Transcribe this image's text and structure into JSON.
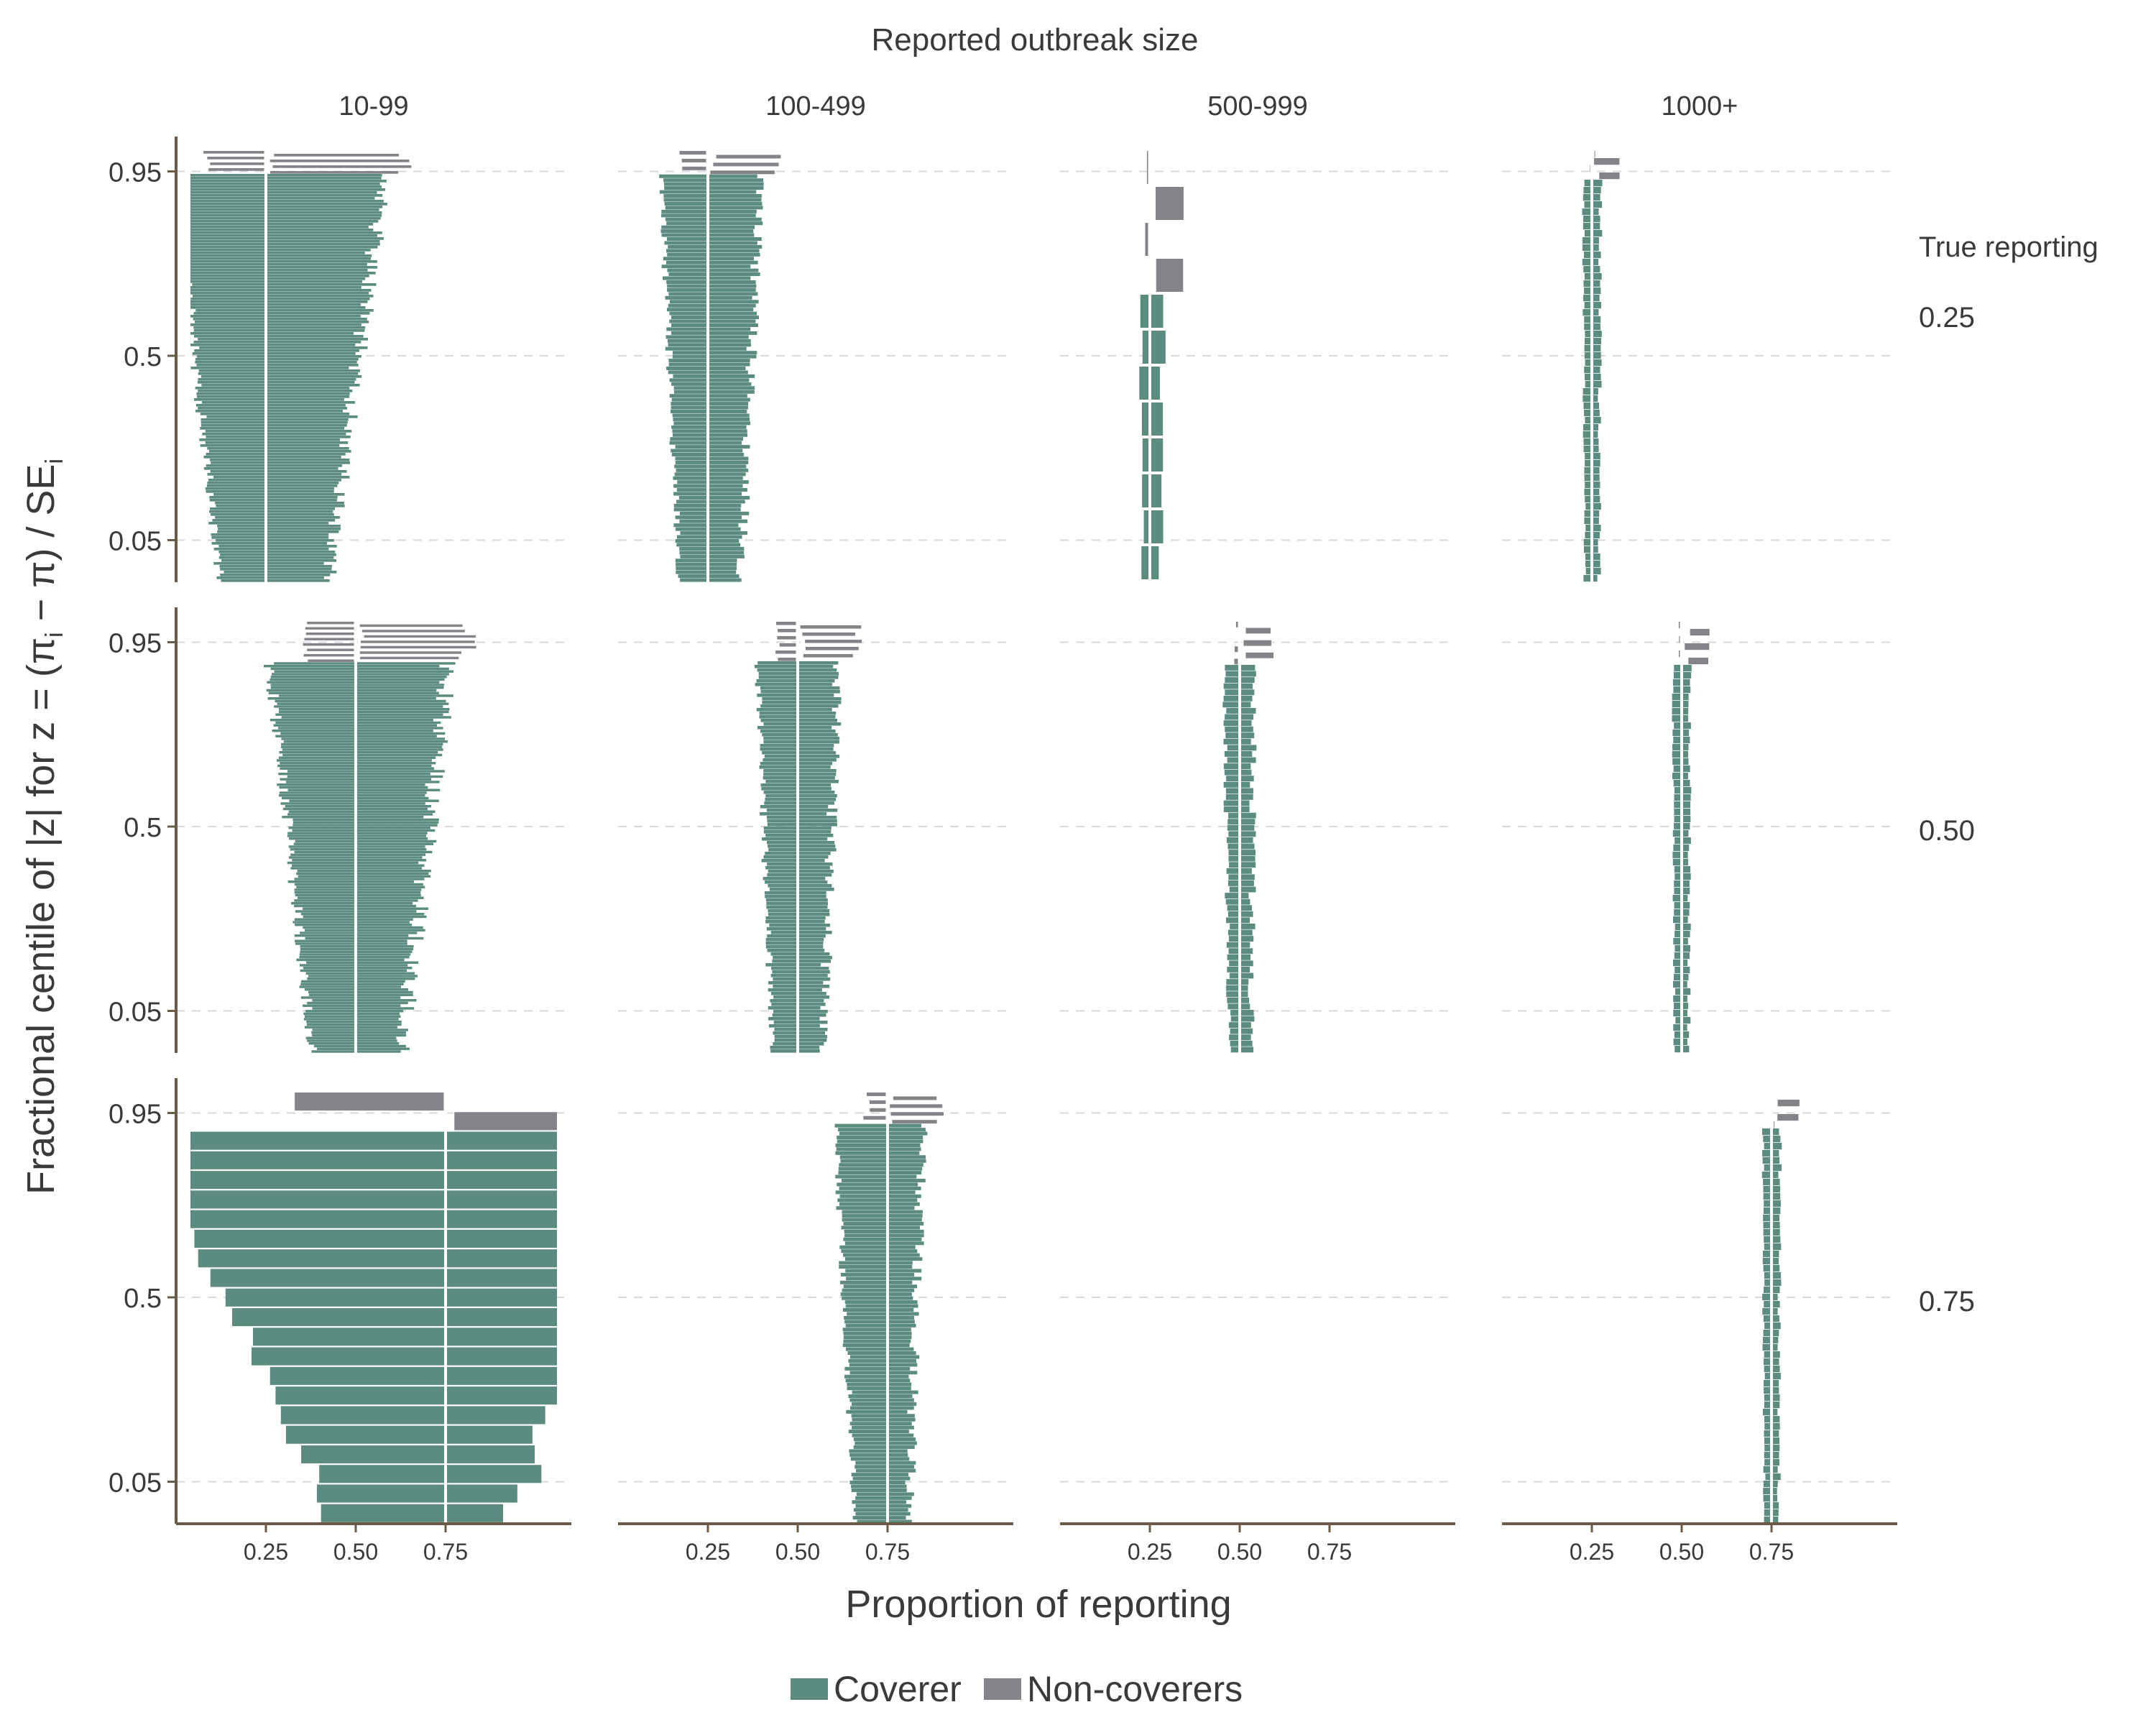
{
  "chart_data": {
    "type": "bar",
    "title": "Reported outbreak size",
    "xlabel": "Proportion of reporting",
    "ylabel": "Fractional centile of |z| for z = (π",
    "ylabel_sub_i": "i",
    "ylabel_mid": " − π) / SE",
    "ylabel_sub_i2": "i",
    "facet_col_title": "Reported outbreak size",
    "facet_row_title": "True reporting",
    "columns": [
      "10-99",
      "100-499",
      "500-999",
      "1000+"
    ],
    "rows": [
      "0.25",
      "0.50",
      "0.75"
    ],
    "row_values": [
      0.25,
      0.5,
      0.75
    ],
    "xlim": [
      0,
      1.1
    ],
    "ylim": [
      0,
      1
    ],
    "x_ticks": [
      0.25,
      0.5,
      0.75
    ],
    "x_tick_labels": [
      "0.25",
      "0.50",
      "0.75"
    ],
    "y_ticks": [
      0.05,
      0.5,
      0.95
    ],
    "y_tick_labels": [
      "0.05",
      "0.5",
      "0.95"
    ],
    "grid": "horizontal dashed at y ticks",
    "legend_position": "bottom",
    "legend": [
      {
        "name": "Coverer",
        "color": "#5b8c7f"
      },
      {
        "name": "Non-coverers",
        "color": "#838389"
      }
    ],
    "colors": {
      "coverer": "#5b8c7f",
      "noncoverer": "#838389",
      "truth_line": "#ffffff",
      "axis": "#6b5a46",
      "grid": "#d9d9d9"
    },
    "panels": [
      {
        "row": "0.25",
        "col": "10-99",
        "n": 150,
        "median_lower": 0.12,
        "median_upper": 0.42,
        "spread": 0.45,
        "noncover_from": 0.95
      },
      {
        "row": "0.25",
        "col": "100-499",
        "n": 110,
        "median_lower": 0.17,
        "median_upper": 0.34,
        "spread": 0.3,
        "noncover_from": 0.95
      },
      {
        "row": "0.25",
        "col": "500-999",
        "n": 12,
        "median_lower": 0.23,
        "median_upper": 0.28,
        "spread": 0.2,
        "noncover_from": 0.67
      },
      {
        "row": "0.25",
        "col": "1000+",
        "n": 60,
        "median_lower": 0.23,
        "median_upper": 0.27,
        "spread": 0.1,
        "noncover_from": 0.94
      },
      {
        "row": "0.50",
        "col": "10-99",
        "n": 160,
        "median_lower": 0.38,
        "median_upper": 0.63,
        "spread": 0.5,
        "noncover_from": 0.91
      },
      {
        "row": "0.50",
        "col": "100-499",
        "n": 120,
        "median_lower": 0.43,
        "median_upper": 0.57,
        "spread": 0.3,
        "noncover_from": 0.91
      },
      {
        "row": "0.50",
        "col": "500-999",
        "n": 70,
        "median_lower": 0.47,
        "median_upper": 0.53,
        "spread": 0.2,
        "noncover_from": 0.91
      },
      {
        "row": "0.50",
        "col": "1000+",
        "n": 60,
        "median_lower": 0.48,
        "median_upper": 0.52,
        "spread": 0.1,
        "noncover_from": 0.91
      },
      {
        "row": "0.75",
        "col": "10-99",
        "n": 22,
        "median_lower": 0.43,
        "median_upper": 0.95,
        "spread": 0.8,
        "noncover_from": 0.93
      },
      {
        "row": "0.75",
        "col": "100-499",
        "n": 110,
        "median_lower": 0.66,
        "median_upper": 0.81,
        "spread": 0.3,
        "noncover_from": 0.93
      },
      {
        "row": "0.75",
        "col": "500-999",
        "n": 0,
        "median_lower": 0,
        "median_upper": 0,
        "spread": 0,
        "noncover_from": 1
      },
      {
        "row": "0.75",
        "col": "1000+",
        "n": 60,
        "median_lower": 0.73,
        "median_upper": 0.77,
        "spread": 0.1,
        "noncover_from": 0.92
      }
    ]
  }
}
